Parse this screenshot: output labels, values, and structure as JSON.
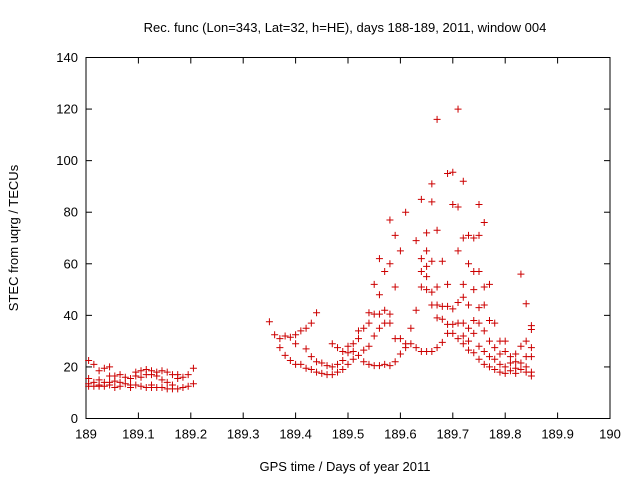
{
  "chart_data": {
    "type": "scatter",
    "title": "Rec. func (Lon=343, Lat=32, h=HE), days 188-189, 2011, window 004",
    "xlabel": "GPS time / Days of year 2011",
    "ylabel": "STEC from uqrg / TECUs",
    "xlim": [
      189,
      190
    ],
    "ylim": [
      0,
      140
    ],
    "xticks": [
      "189",
      "189.1",
      "189.2",
      "189.3",
      "189.4",
      "189.5",
      "189.6",
      "189.7",
      "189.8",
      "189.9",
      "190"
    ],
    "yticks": [
      "0",
      "20",
      "40",
      "60",
      "80",
      "100",
      "120",
      "140"
    ],
    "grid": false,
    "marker": "+",
    "color": "#cc0000",
    "series": [
      {
        "name": "STEC",
        "points": [
          [
            189.005,
            22.5
          ],
          [
            189.005,
            15.5
          ],
          [
            189.005,
            13.5
          ],
          [
            189.005,
            12.5
          ],
          [
            189.015,
            21
          ],
          [
            189.015,
            14
          ],
          [
            189.015,
            12.5
          ],
          [
            189.025,
            18.5
          ],
          [
            189.025,
            15
          ],
          [
            189.025,
            13
          ],
          [
            189.025,
            12.5
          ],
          [
            189.035,
            19.5
          ],
          [
            189.035,
            14
          ],
          [
            189.035,
            12.5
          ],
          [
            189.045,
            20
          ],
          [
            189.045,
            16.5
          ],
          [
            189.045,
            14
          ],
          [
            189.045,
            13
          ],
          [
            189.055,
            16.5
          ],
          [
            189.055,
            14.5
          ],
          [
            189.055,
            12
          ],
          [
            189.065,
            17
          ],
          [
            189.065,
            14
          ],
          [
            189.065,
            12.5
          ],
          [
            189.075,
            16
          ],
          [
            189.075,
            13.5
          ],
          [
            189.085,
            15.5
          ],
          [
            189.085,
            13
          ],
          [
            189.085,
            12
          ],
          [
            189.095,
            18
          ],
          [
            189.095,
            16.5
          ],
          [
            189.095,
            13
          ],
          [
            189.105,
            18.5
          ],
          [
            189.105,
            16
          ],
          [
            189.105,
            12.5
          ],
          [
            189.115,
            19
          ],
          [
            189.115,
            17
          ],
          [
            189.115,
            12
          ],
          [
            189.125,
            18.5
          ],
          [
            189.125,
            17
          ],
          [
            189.125,
            13
          ],
          [
            189.125,
            12
          ],
          [
            189.135,
            18
          ],
          [
            189.135,
            16.5
          ],
          [
            189.135,
            12
          ],
          [
            189.145,
            18.5
          ],
          [
            189.145,
            15
          ],
          [
            189.145,
            12
          ],
          [
            189.155,
            18
          ],
          [
            189.155,
            14
          ],
          [
            189.155,
            11.5
          ],
          [
            189.165,
            17
          ],
          [
            189.165,
            13
          ],
          [
            189.165,
            11.5
          ],
          [
            189.175,
            17
          ],
          [
            189.175,
            15.5
          ],
          [
            189.175,
            11.5
          ],
          [
            189.185,
            16
          ],
          [
            189.185,
            12
          ],
          [
            189.195,
            17
          ],
          [
            189.195,
            12.5
          ],
          [
            189.205,
            19.5
          ],
          [
            189.205,
            13.5
          ],
          [
            189.35,
            37.5
          ],
          [
            189.36,
            32.5
          ],
          [
            189.37,
            31
          ],
          [
            189.37,
            27.5
          ],
          [
            189.38,
            32
          ],
          [
            189.38,
            24.5
          ],
          [
            189.39,
            31.5
          ],
          [
            189.39,
            22.5
          ],
          [
            189.4,
            32.5
          ],
          [
            189.4,
            29
          ],
          [
            189.4,
            21
          ],
          [
            189.41,
            34
          ],
          [
            189.41,
            21
          ],
          [
            189.42,
            35
          ],
          [
            189.42,
            27
          ],
          [
            189.42,
            19.5
          ],
          [
            189.43,
            37
          ],
          [
            189.43,
            24
          ],
          [
            189.43,
            19
          ],
          [
            189.44,
            41
          ],
          [
            189.44,
            22
          ],
          [
            189.44,
            18
          ],
          [
            189.45,
            21.5
          ],
          [
            189.45,
            17.5
          ],
          [
            189.46,
            20.5
          ],
          [
            189.46,
            17
          ],
          [
            189.47,
            29
          ],
          [
            189.47,
            20
          ],
          [
            189.47,
            17
          ],
          [
            189.48,
            27.5
          ],
          [
            189.48,
            21
          ],
          [
            189.48,
            18
          ],
          [
            189.49,
            26
          ],
          [
            189.49,
            22.5
          ],
          [
            189.49,
            19
          ],
          [
            189.5,
            28
          ],
          [
            189.5,
            25.5
          ],
          [
            189.5,
            21
          ],
          [
            189.51,
            29
          ],
          [
            189.51,
            26
          ],
          [
            189.51,
            23
          ],
          [
            189.52,
            34
          ],
          [
            189.52,
            31
          ],
          [
            189.52,
            24.5
          ],
          [
            189.53,
            35
          ],
          [
            189.53,
            26.5
          ],
          [
            189.53,
            22
          ],
          [
            189.54,
            41
          ],
          [
            189.54,
            37
          ],
          [
            189.54,
            28
          ],
          [
            189.54,
            21
          ],
          [
            189.55,
            52
          ],
          [
            189.55,
            40.5
          ],
          [
            189.55,
            32
          ],
          [
            189.55,
            20.5
          ],
          [
            189.56,
            62
          ],
          [
            189.56,
            48
          ],
          [
            189.56,
            40.5
          ],
          [
            189.56,
            35
          ],
          [
            189.56,
            20.5
          ],
          [
            189.57,
            57
          ],
          [
            189.57,
            42
          ],
          [
            189.57,
            37
          ],
          [
            189.57,
            21
          ],
          [
            189.58,
            77
          ],
          [
            189.58,
            60
          ],
          [
            189.58,
            40.5
          ],
          [
            189.58,
            37
          ],
          [
            189.58,
            20.5
          ],
          [
            189.59,
            71
          ],
          [
            189.59,
            51
          ],
          [
            189.59,
            31
          ],
          [
            189.59,
            22
          ],
          [
            189.6,
            65
          ],
          [
            189.6,
            31
          ],
          [
            189.6,
            25
          ],
          [
            189.61,
            80
          ],
          [
            189.61,
            29
          ],
          [
            189.61,
            27.5
          ],
          [
            189.62,
            35
          ],
          [
            189.62,
            29
          ],
          [
            189.63,
            69
          ],
          [
            189.63,
            42
          ],
          [
            189.63,
            27.5
          ],
          [
            189.64,
            85
          ],
          [
            189.64,
            62
          ],
          [
            189.64,
            57
          ],
          [
            189.64,
            51
          ],
          [
            189.64,
            26
          ],
          [
            189.65,
            72
          ],
          [
            189.65,
            65
          ],
          [
            189.65,
            59
          ],
          [
            189.65,
            55
          ],
          [
            189.65,
            50
          ],
          [
            189.65,
            26
          ],
          [
            189.66,
            91
          ],
          [
            189.66,
            84
          ],
          [
            189.66,
            61
          ],
          [
            189.66,
            49
          ],
          [
            189.66,
            44
          ],
          [
            189.66,
            26
          ],
          [
            189.67,
            116
          ],
          [
            189.67,
            73
          ],
          [
            189.67,
            51
          ],
          [
            189.67,
            44
          ],
          [
            189.67,
            39
          ],
          [
            189.67,
            27.5
          ],
          [
            189.68,
            61
          ],
          [
            189.68,
            43.5
          ],
          [
            189.68,
            38.5
          ],
          [
            189.68,
            29.5
          ],
          [
            189.69,
            95
          ],
          [
            189.69,
            52
          ],
          [
            189.69,
            43.5
          ],
          [
            189.69,
            36.5
          ],
          [
            189.69,
            33
          ],
          [
            189.7,
            95.5
          ],
          [
            189.7,
            83
          ],
          [
            189.7,
            42.5
          ],
          [
            189.7,
            36.5
          ],
          [
            189.7,
            33
          ],
          [
            189.71,
            120
          ],
          [
            189.71,
            82
          ],
          [
            189.71,
            65
          ],
          [
            189.71,
            45
          ],
          [
            189.71,
            37
          ],
          [
            189.71,
            31
          ],
          [
            189.72,
            92
          ],
          [
            189.72,
            70
          ],
          [
            189.72,
            52
          ],
          [
            189.72,
            47
          ],
          [
            189.72,
            37
          ],
          [
            189.72,
            32
          ],
          [
            189.72,
            29
          ],
          [
            189.73,
            71
          ],
          [
            189.73,
            60
          ],
          [
            189.73,
            44
          ],
          [
            189.73,
            35
          ],
          [
            189.73,
            30
          ],
          [
            189.73,
            26.5
          ],
          [
            189.74,
            70
          ],
          [
            189.74,
            57
          ],
          [
            189.74,
            50
          ],
          [
            189.74,
            38
          ],
          [
            189.74,
            33
          ],
          [
            189.74,
            25.5
          ],
          [
            189.75,
            83
          ],
          [
            189.75,
            71
          ],
          [
            189.75,
            57
          ],
          [
            189.75,
            43
          ],
          [
            189.75,
            37
          ],
          [
            189.75,
            28
          ],
          [
            189.75,
            23
          ],
          [
            189.76,
            76
          ],
          [
            189.76,
            51
          ],
          [
            189.76,
            44
          ],
          [
            189.76,
            34
          ],
          [
            189.76,
            26
          ],
          [
            189.76,
            21
          ],
          [
            189.77,
            52
          ],
          [
            189.77,
            38
          ],
          [
            189.77,
            30
          ],
          [
            189.77,
            24
          ],
          [
            189.77,
            20
          ],
          [
            189.78,
            37
          ],
          [
            189.78,
            27.5
          ],
          [
            189.78,
            23
          ],
          [
            189.78,
            19
          ],
          [
            189.79,
            30
          ],
          [
            189.79,
            25
          ],
          [
            189.79,
            21
          ],
          [
            189.79,
            18
          ],
          [
            189.8,
            30
          ],
          [
            189.8,
            26
          ],
          [
            189.8,
            20
          ],
          [
            189.8,
            17.5
          ],
          [
            189.81,
            24
          ],
          [
            189.81,
            21.5
          ],
          [
            189.81,
            18.5
          ],
          [
            189.82,
            25
          ],
          [
            189.82,
            22
          ],
          [
            189.82,
            19.5
          ],
          [
            189.82,
            17.5
          ],
          [
            189.83,
            56
          ],
          [
            189.83,
            28
          ],
          [
            189.83,
            21.5
          ],
          [
            189.83,
            19
          ],
          [
            189.84,
            44.5
          ],
          [
            189.84,
            30
          ],
          [
            189.84,
            24
          ],
          [
            189.84,
            20
          ],
          [
            189.84,
            18
          ],
          [
            189.85,
            36
          ],
          [
            189.85,
            34.5
          ],
          [
            189.85,
            27.5
          ],
          [
            189.85,
            24
          ],
          [
            189.85,
            18
          ],
          [
            189.85,
            16.5
          ]
        ]
      }
    ]
  }
}
